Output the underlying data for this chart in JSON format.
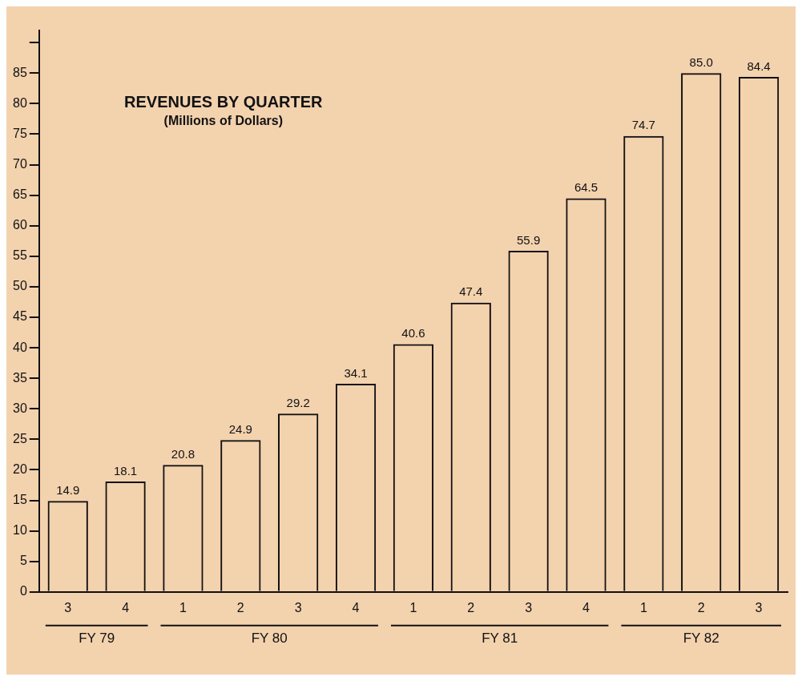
{
  "chart_data": {
    "type": "bar",
    "title": "REVENUES BY QUARTER",
    "subtitle": "(Millions of Dollars)",
    "categories": [
      "3",
      "4",
      "1",
      "2",
      "3",
      "4",
      "1",
      "2",
      "3",
      "4",
      "1",
      "2",
      "3"
    ],
    "values": [
      14.9,
      18.1,
      20.8,
      24.9,
      29.2,
      34.1,
      40.6,
      47.4,
      55.9,
      64.5,
      74.7,
      85.0,
      84.4
    ],
    "color": "#111111",
    "value_labels": [
      "14.9",
      "18.1",
      "20.8",
      "24.9",
      "29.2",
      "34.1",
      "40.6",
      "47.4",
      "55.9",
      "64.5",
      "74.7",
      "85.0",
      "84.4"
    ],
    "ylim": [
      0,
      92
    ],
    "yticks": [
      0,
      5,
      10,
      15,
      20,
      25,
      30,
      35,
      40,
      45,
      50,
      55,
      60,
      65,
      70,
      75,
      80,
      85,
      {
        "value": 90,
        "label": null
      }
    ],
    "grid": false,
    "annotations": [
      "FY 79",
      "FY 80",
      "FY 81",
      "FY 82"
    ]
  }
}
